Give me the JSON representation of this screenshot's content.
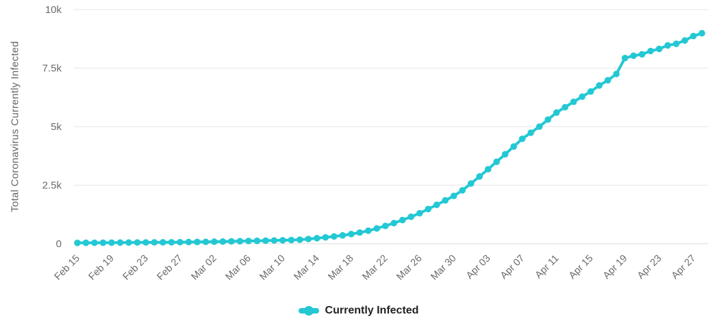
{
  "chart_data": {
    "type": "line",
    "title": "",
    "ylabel": "Total Coronavirus Currently Infected",
    "xlabel": "",
    "ylim": [
      0,
      10000
    ],
    "grid": true,
    "y_ticks": [
      {
        "value": 0,
        "label": "0"
      },
      {
        "value": 2500,
        "label": "2.5k"
      },
      {
        "value": 5000,
        "label": "5k"
      },
      {
        "value": 7500,
        "label": "7.5k"
      },
      {
        "value": 10000,
        "label": "10k"
      }
    ],
    "x_tick_every": 4,
    "x": [
      "Feb 15",
      "Feb 16",
      "Feb 17",
      "Feb 18",
      "Feb 19",
      "Feb 20",
      "Feb 21",
      "Feb 22",
      "Feb 23",
      "Feb 24",
      "Feb 25",
      "Feb 26",
      "Feb 27",
      "Feb 28",
      "Feb 29",
      "Mar 01",
      "Mar 02",
      "Mar 03",
      "Mar 04",
      "Mar 05",
      "Mar 06",
      "Mar 07",
      "Mar 08",
      "Mar 09",
      "Mar 10",
      "Mar 11",
      "Mar 12",
      "Mar 13",
      "Mar 14",
      "Mar 15",
      "Mar 16",
      "Mar 17",
      "Mar 18",
      "Mar 19",
      "Mar 20",
      "Mar 21",
      "Mar 22",
      "Mar 23",
      "Mar 24",
      "Mar 25",
      "Mar 26",
      "Mar 27",
      "Mar 28",
      "Mar 29",
      "Mar 30",
      "Mar 31",
      "Apr 01",
      "Apr 02",
      "Apr 03",
      "Apr 04",
      "Apr 05",
      "Apr 06",
      "Apr 07",
      "Apr 08",
      "Apr 09",
      "Apr 10",
      "Apr 11",
      "Apr 12",
      "Apr 13",
      "Apr 14",
      "Apr 15",
      "Apr 16",
      "Apr 17",
      "Apr 18",
      "Apr 19",
      "Apr 20",
      "Apr 21",
      "Apr 22",
      "Apr 23",
      "Apr 24",
      "Apr 25",
      "Apr 26",
      "Apr 27",
      "Apr 28"
    ],
    "series": [
      {
        "name": "Currently Infected",
        "color": "#23c8d4",
        "values": [
          35,
          38,
          40,
          42,
          45,
          48,
          50,
          52,
          55,
          58,
          60,
          62,
          65,
          70,
          75,
          80,
          85,
          92,
          100,
          108,
          115,
          122,
          130,
          138,
          145,
          155,
          170,
          200,
          235,
          270,
          310,
          355,
          410,
          475,
          555,
          650,
          760,
          880,
          1010,
          1150,
          1300,
          1480,
          1660,
          1850,
          2040,
          2280,
          2570,
          2870,
          3180,
          3500,
          3820,
          4150,
          4480,
          4740,
          5000,
          5300,
          5600,
          5830,
          6060,
          6280,
          6500,
          6760,
          6980,
          7250,
          7930,
          8030,
          8090,
          8230,
          8320,
          8470,
          8540,
          8680,
          8870,
          8990
        ]
      }
    ],
    "legend": {
      "position": "bottom",
      "items": [
        {
          "label": "Currently Infected",
          "color": "#23c8d4"
        }
      ]
    },
    "colors": {
      "series": "#23c8d4",
      "axis_text": "#6b6b6b",
      "grid": "#e6e6e6",
      "axis_line": "#d9d9d9",
      "legend_text": "#222222"
    }
  }
}
